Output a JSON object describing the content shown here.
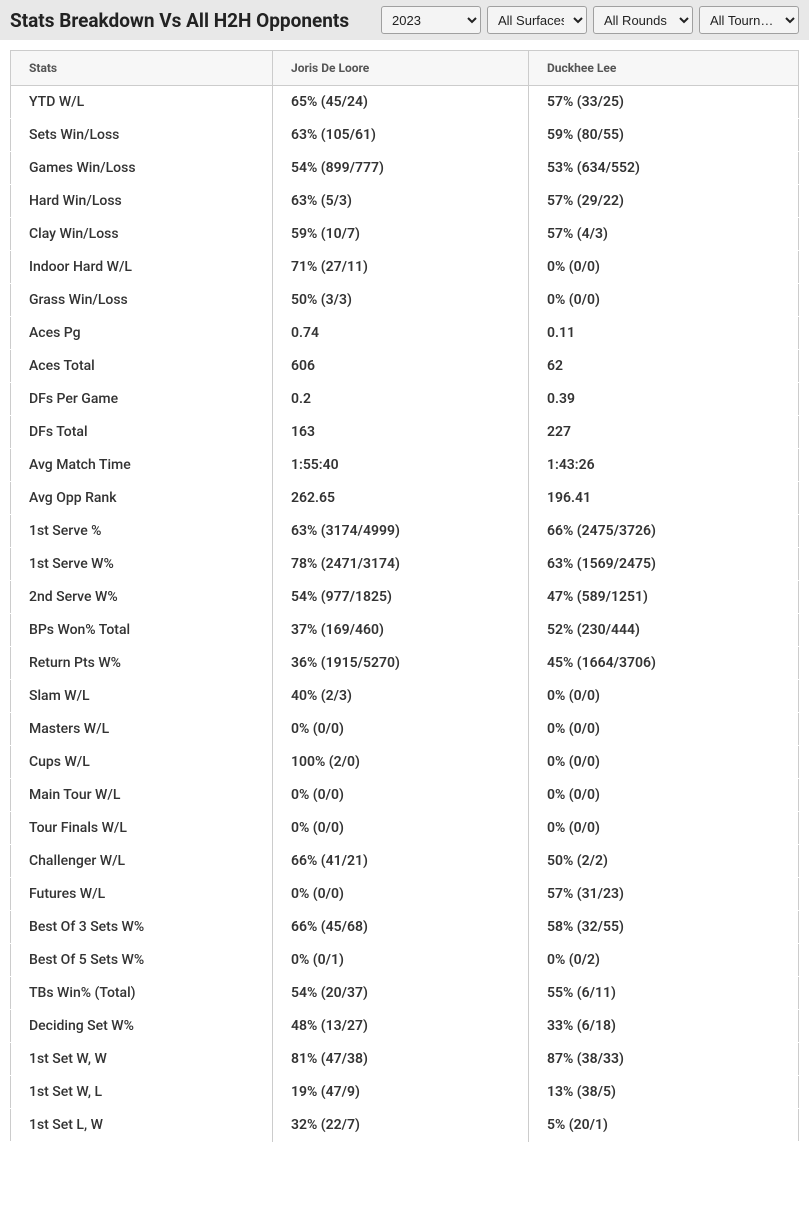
{
  "header": {
    "title": "Stats Breakdown Vs All H2H Opponents"
  },
  "filters": {
    "year": "2023",
    "surface": "All Surfaces",
    "round": "All Rounds",
    "tournament": "All Tourn…"
  },
  "table": {
    "columns": [
      "Stats",
      "Joris De Loore",
      "Duckhee Lee"
    ],
    "rows": [
      [
        "YTD W/L",
        "65% (45/24)",
        "57% (33/25)"
      ],
      [
        "Sets Win/Loss",
        "63% (105/61)",
        "59% (80/55)"
      ],
      [
        "Games Win/Loss",
        "54% (899/777)",
        "53% (634/552)"
      ],
      [
        "Hard Win/Loss",
        "63% (5/3)",
        "57% (29/22)"
      ],
      [
        "Clay Win/Loss",
        "59% (10/7)",
        "57% (4/3)"
      ],
      [
        "Indoor Hard W/L",
        "71% (27/11)",
        "0% (0/0)"
      ],
      [
        "Grass Win/Loss",
        "50% (3/3)",
        "0% (0/0)"
      ],
      [
        "Aces Pg",
        "0.74",
        "0.11"
      ],
      [
        "Aces Total",
        "606",
        "62"
      ],
      [
        "DFs Per Game",
        "0.2",
        "0.39"
      ],
      [
        "DFs Total",
        "163",
        "227"
      ],
      [
        "Avg Match Time",
        "1:55:40",
        "1:43:26"
      ],
      [
        "Avg Opp Rank",
        "262.65",
        "196.41"
      ],
      [
        "1st Serve %",
        "63% (3174/4999)",
        "66% (2475/3726)"
      ],
      [
        "1st Serve W%",
        "78% (2471/3174)",
        "63% (1569/2475)"
      ],
      [
        "2nd Serve W%",
        "54% (977/1825)",
        "47% (589/1251)"
      ],
      [
        "BPs Won% Total",
        "37% (169/460)",
        "52% (230/444)"
      ],
      [
        "Return Pts W%",
        "36% (1915/5270)",
        "45% (1664/3706)"
      ],
      [
        "Slam W/L",
        "40% (2/3)",
        "0% (0/0)"
      ],
      [
        "Masters W/L",
        "0% (0/0)",
        "0% (0/0)"
      ],
      [
        "Cups W/L",
        "100% (2/0)",
        "0% (0/0)"
      ],
      [
        "Main Tour W/L",
        "0% (0/0)",
        "0% (0/0)"
      ],
      [
        "Tour Finals W/L",
        "0% (0/0)",
        "0% (0/0)"
      ],
      [
        "Challenger W/L",
        "66% (41/21)",
        "50% (2/2)"
      ],
      [
        "Futures W/L",
        "0% (0/0)",
        "57% (31/23)"
      ],
      [
        "Best Of 3 Sets W%",
        "66% (45/68)",
        "58% (32/55)"
      ],
      [
        "Best Of 5 Sets W%",
        "0% (0/1)",
        "0% (0/2)"
      ],
      [
        "TBs Win% (Total)",
        "54% (20/37)",
        "55% (6/11)"
      ],
      [
        "Deciding Set W%",
        "48% (13/27)",
        "33% (6/18)"
      ],
      [
        "1st Set W, W",
        "81% (47/38)",
        "87% (38/33)"
      ],
      [
        "1st Set W, L",
        "19% (47/9)",
        "13% (38/5)"
      ],
      [
        "1st Set L, W",
        "32% (22/7)",
        "5% (20/1)"
      ]
    ]
  },
  "colors": {
    "header_bg": "#e8e8e8",
    "border": "#cccccc",
    "text_primary": "#333333",
    "text_header": "#555555",
    "page_bg": "#ffffff"
  }
}
